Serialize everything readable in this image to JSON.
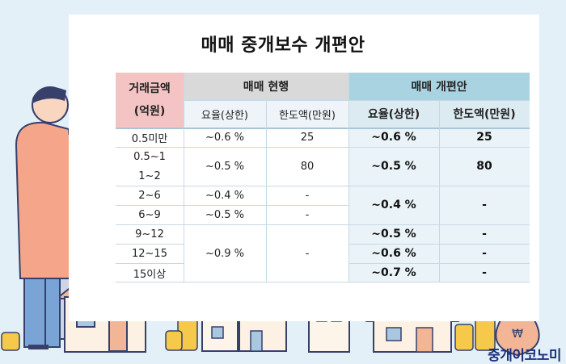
{
  "title": "매매 중개보수 개편안",
  "table": {
    "header_amount": "거래금액\n(억원)",
    "header_current": "매매 현행",
    "header_reform": "매매 개편안",
    "sub_rate": "요율(상한)",
    "sub_limit": "한도액(만원)",
    "rows": [
      "0.5미만",
      "0.5~1",
      "1~2",
      "2~6",
      "6~9",
      "9~12",
      "12~15",
      "15이상"
    ],
    "current": {
      "r1_rate": "~0.6 %",
      "r1_limit": "25",
      "r2_rate": "~0.5 %",
      "r2_limit": "80",
      "r3_rate": "~0.4 %",
      "r3_limit": "-",
      "r4_rate": "~0.5 %",
      "r4_limit": "-",
      "r5_rate": "~0.9 %",
      "r5_limit": "-"
    },
    "reform": {
      "r1_rate": "~0.6 %",
      "r1_limit": "25",
      "r2_rate": "~0.5 %",
      "r2_limit": "80",
      "r3_rate": "~0.4 %",
      "r3_limit": "-",
      "r4_rate": "~0.5 %",
      "r4_limit": "-",
      "r5_rate": "~0.6 %",
      "r5_limit": "-",
      "r6_rate": "~0.7 %",
      "r6_limit": "-"
    }
  },
  "watermark": "중개이코노미",
  "colors": {
    "background": "#e4f0f7",
    "header_pink": "#f4c4c4",
    "header_gray": "#d9d9d9",
    "header_blue": "#a9d3e0",
    "reform_fill": "#dcebf2",
    "sub_fill": "#eef4f8"
  },
  "icons": [
    "magnifier-person-illustration",
    "houses-illustration",
    "coin-stacks-icon",
    "money-bag-icon"
  ]
}
